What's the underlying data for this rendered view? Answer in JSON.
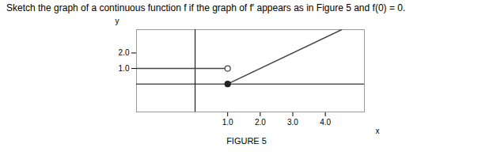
{
  "chart_data": {
    "type": "line",
    "title": "Sketch the graph of a continuous function f if the graph of f′ appears as in Figure 5 and f(0) = 0.",
    "caption": "FIGURE 5",
    "xlabel": "x",
    "ylabel": "y",
    "xlim": [
      -1.8,
      5.2
    ],
    "ylim": [
      -1.8,
      3.5
    ],
    "xticks": [
      1,
      2,
      3,
      4
    ],
    "yticks": [
      1,
      2
    ],
    "grid": false,
    "series": [
      {
        "x": [
          -1.8,
          1.0
        ],
        "values": [
          1.0,
          1.0
        ],
        "color": "#444444"
      },
      {
        "x": [
          1.0,
          4.5
        ],
        "values": [
          0.0,
          3.5
        ],
        "color": "#444444"
      },
      {
        "type": "scatter",
        "x": [
          1.0
        ],
        "values": [
          1.0
        ],
        "color": "#444444",
        "marker": "open_circle"
      },
      {
        "type": "scatter",
        "x": [
          1.0
        ],
        "values": [
          0.0
        ],
        "color": "#222222",
        "marker": "circle"
      }
    ]
  }
}
